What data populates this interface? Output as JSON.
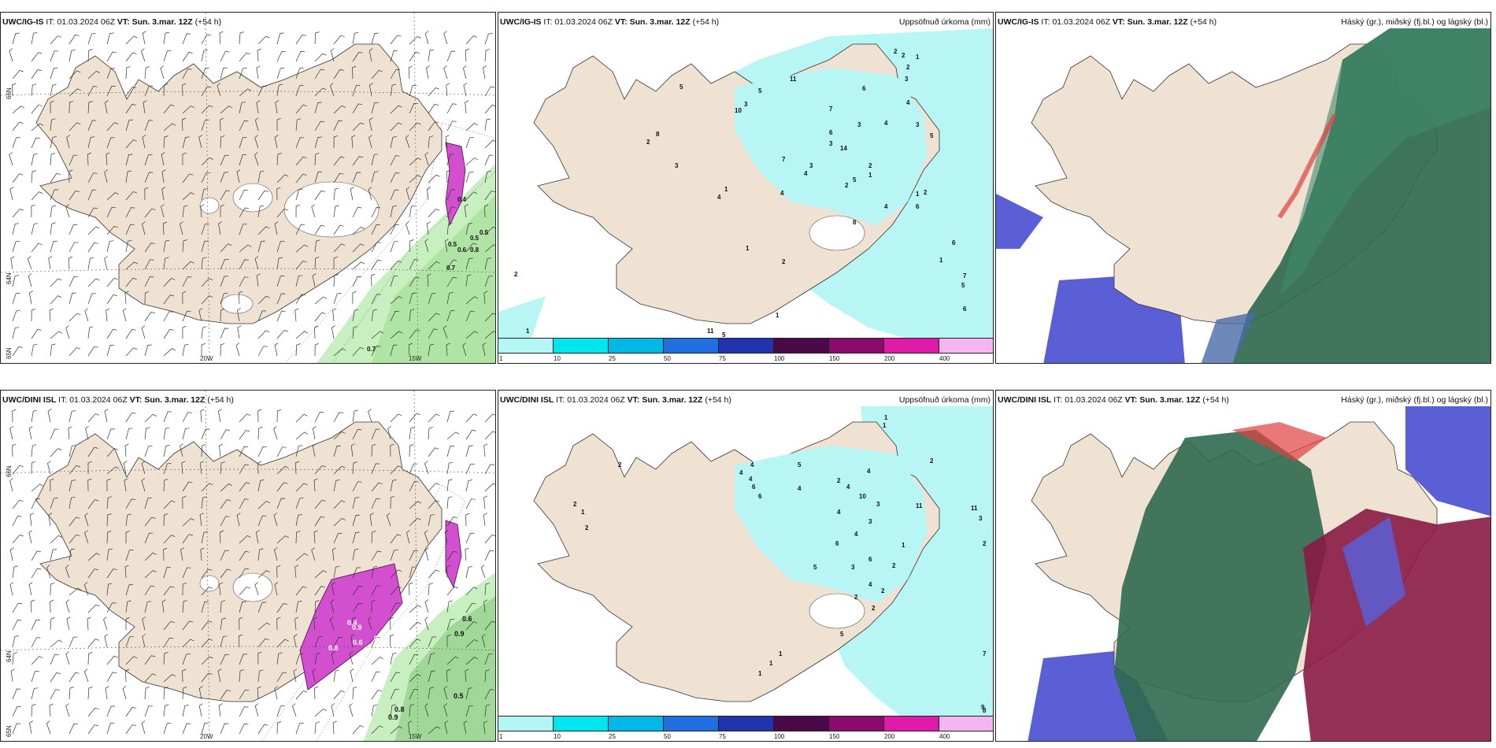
{
  "panels": [
    {
      "id": "p1",
      "model": "UWC/IG-IS",
      "it_label": "IT:",
      "it_value": "01.03.2024 06Z",
      "vt_label": "VT:",
      "vt_value": "Sun. 3.mar. 12Z",
      "lead": "(+54 h)",
      "right_title": ""
    },
    {
      "id": "p2",
      "model": "UWC/IG-IS",
      "it_label": "IT:",
      "it_value": "01.03.2024 06Z",
      "vt_label": "VT:",
      "vt_value": "Sun. 3.mar. 12Z",
      "lead": "(+54 h)",
      "right_title": "Uppsöfnuð úrkoma (mm)"
    },
    {
      "id": "p3",
      "model": "UWC/IG-IS",
      "it_label": "IT:",
      "it_value": "01.03.2024 06Z",
      "vt_label": "VT:",
      "vt_value": "Sun. 3.mar. 12Z",
      "lead": "(+54 h)",
      "right_title": "Háský (gr.), miðský (fj.bl.) og lágský (bl.)"
    },
    {
      "id": "p4",
      "model": "UWC/DINI ISL",
      "it_label": "IT:",
      "it_value": "01.03.2024 06Z",
      "vt_label": "VT:",
      "vt_value": "Sun. 3.mar. 12Z",
      "lead": "(+54 h)",
      "right_title": ""
    },
    {
      "id": "p5",
      "model": "UWC/DINI ISL",
      "it_label": "IT:",
      "it_value": "01.03.2024 06Z",
      "vt_label": "VT:",
      "vt_value": "Sun. 3.mar. 12Z",
      "lead": "(+54 h)",
      "right_title": "Uppsöfnuð úrkoma (mm)"
    },
    {
      "id": "p6",
      "model": "UWC/DINI ISL",
      "it_label": "IT:",
      "it_value": "01.03.2024 06Z",
      "vt_label": "VT:",
      "vt_value": "Sun. 3.mar. 12Z",
      "lead": "(+54 h)",
      "right_title": "Háský (gr.), miðský (fj.bl.) og lágský (bl.)"
    }
  ],
  "axes": {
    "lon_20w": "20W",
    "lon_15w": "15W",
    "lat_66n": "66N",
    "lat_64n": "64N",
    "lat_65n": "65N"
  },
  "colorbar": {
    "ticks": [
      "1",
      "10",
      "25",
      "50",
      "75",
      "100",
      "150",
      "200",
      "400"
    ],
    "colors": [
      "#b3f6f6",
      "#00e6f0",
      "#00b8e8",
      "#1f6fe0",
      "#2233b0",
      "#4a0a4a",
      "#8a0a6e",
      "#e01aa8",
      "#f4b6f0"
    ]
  },
  "precip_ig": [
    "2",
    "2",
    "2",
    "1",
    "3",
    "2",
    "8",
    "11",
    "5",
    "3",
    "10",
    "11",
    "5",
    "7",
    "6",
    "4",
    "3",
    "5",
    "4",
    "3",
    "6",
    "3",
    "14",
    "2",
    "1",
    "7",
    "4",
    "5",
    "3",
    "1",
    "2",
    "4",
    "3",
    "2",
    "5",
    "4",
    "6",
    "6",
    "7",
    "5",
    "6",
    "2",
    "1",
    "4",
    "1",
    "1",
    "2",
    "8",
    "1",
    "1"
  ],
  "precip_dini": [
    "1",
    "1",
    "2",
    "11",
    "3",
    "2",
    "4",
    "4",
    "4",
    "6",
    "6",
    "5",
    "4",
    "4",
    "10",
    "4",
    "4",
    "3",
    "2",
    "3",
    "4",
    "1",
    "5",
    "6",
    "3",
    "2",
    "11",
    "1",
    "5",
    "2",
    "2",
    "4",
    "2",
    "6",
    "1",
    "1",
    "7",
    "9",
    "8",
    "2",
    "2",
    "1",
    "2"
  ],
  "snow_ig": [
    "0.5",
    "0.4",
    "0.5",
    "0.5",
    "0.6",
    "0.8",
    "0.7",
    "0.7"
  ],
  "snow_dini": [
    "0.6",
    "0.9",
    "0.5",
    "0.8",
    "0.9",
    "0.9",
    "0.6",
    "0.6",
    "0.4",
    "0.8",
    "0.5",
    "0.9"
  ],
  "colors": {
    "land": "#efe2d2",
    "snow_white": "#ffffff",
    "precip_cyan": "#b8f5f5",
    "green": "#c8efc0",
    "purple": "#d24fd0",
    "dark_green": "#2f6a4f",
    "teal": "#2e7f6c",
    "blue_low": "#5b5fd6",
    "maroon": "#8a1a44"
  }
}
